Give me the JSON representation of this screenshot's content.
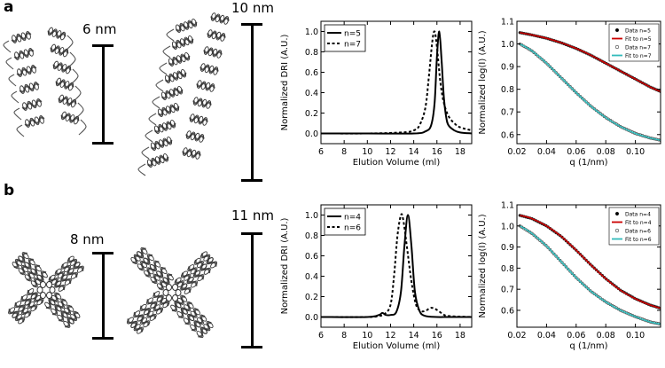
{
  "figure": {
    "panels": [
      {
        "label": "a",
        "scale_labels": [
          "6 nm",
          "10 nm"
        ],
        "structures": [
          "protein-ribbon-n5",
          "protein-ribbon-n7"
        ]
      },
      {
        "label": "b",
        "scale_labels": [
          "8 nm",
          "11 nm"
        ],
        "structures": [
          "protein-ribbon-n4",
          "protein-ribbon-n6"
        ]
      }
    ]
  },
  "chart_data": [
    {
      "type": "line",
      "id": "sec-a",
      "xlabel": "Elution Volume (ml)",
      "ylabel": "Normalized DRI (A.U.)",
      "xlim": [
        6,
        19
      ],
      "ylim": [
        -0.1,
        1.1
      ],
      "xticks": [
        6,
        8,
        10,
        12,
        14,
        16,
        18
      ],
      "yticks": [
        0.0,
        0.2,
        0.4,
        0.6,
        0.8,
        1.0
      ],
      "legend_position": "top-left",
      "series": [
        {
          "name": "n=5",
          "style": "solid",
          "peak": 16.2,
          "width_left": 0.32,
          "width_right": 0.38,
          "x": [
            6,
            10,
            14,
            15,
            15.5,
            15.8,
            16.0,
            16.2,
            16.4,
            16.6,
            16.8,
            17.0,
            17.5,
            18,
            19
          ],
          "y": [
            0,
            0,
            0.0,
            0.02,
            0.08,
            0.3,
            0.75,
            1.0,
            0.72,
            0.35,
            0.16,
            0.08,
            0.03,
            0.01,
            0
          ]
        },
        {
          "name": "n=7",
          "style": "dotted",
          "x": [
            6,
            10,
            13,
            14,
            14.5,
            15.0,
            15.3,
            15.6,
            15.8,
            16.0,
            16.3,
            16.6,
            17,
            17.5,
            18,
            19
          ],
          "y": [
            0,
            0,
            0.01,
            0.03,
            0.08,
            0.25,
            0.55,
            0.9,
            1.0,
            0.85,
            0.5,
            0.3,
            0.17,
            0.1,
            0.06,
            0.03
          ]
        }
      ]
    },
    {
      "type": "line",
      "id": "saxs-a",
      "xlabel": "q (1/nm)",
      "ylabel": "Normalized log(I) (A.U.)",
      "xlim": [
        0.02,
        0.117
      ],
      "ylim": [
        0.56,
        1.1
      ],
      "xticks": [
        0.02,
        0.04,
        0.06,
        0.08,
        0.1
      ],
      "yticks": [
        0.6,
        0.7,
        0.8,
        0.9,
        1.0,
        1.1
      ],
      "legend_position": "top-right",
      "series": [
        {
          "name": "Data n=5",
          "style": "markers-filled",
          "x": [
            0.022,
            0.03,
            0.04,
            0.05,
            0.06,
            0.07,
            0.08,
            0.09,
            0.1,
            0.11,
            0.117
          ],
          "y": [
            1.05,
            1.04,
            1.025,
            1.005,
            0.98,
            0.95,
            0.915,
            0.88,
            0.845,
            0.81,
            0.79
          ]
        },
        {
          "name": "Fit to n=5",
          "style": "line-red",
          "x": [
            0.022,
            0.03,
            0.04,
            0.05,
            0.06,
            0.07,
            0.08,
            0.09,
            0.1,
            0.11,
            0.117
          ],
          "y": [
            1.05,
            1.04,
            1.025,
            1.005,
            0.98,
            0.95,
            0.915,
            0.88,
            0.845,
            0.81,
            0.79
          ]
        },
        {
          "name": "Data n=7",
          "style": "markers-open",
          "x": [
            0.022,
            0.03,
            0.04,
            0.05,
            0.06,
            0.07,
            0.08,
            0.09,
            0.1,
            0.11,
            0.117
          ],
          "y": [
            1.0,
            0.97,
            0.915,
            0.85,
            0.785,
            0.725,
            0.675,
            0.635,
            0.605,
            0.585,
            0.575
          ]
        },
        {
          "name": "Fit to n=7",
          "style": "line-cyan",
          "x": [
            0.022,
            0.03,
            0.04,
            0.05,
            0.06,
            0.07,
            0.08,
            0.09,
            0.1,
            0.11,
            0.117
          ],
          "y": [
            1.0,
            0.97,
            0.915,
            0.85,
            0.785,
            0.725,
            0.675,
            0.635,
            0.605,
            0.585,
            0.575
          ]
        }
      ]
    },
    {
      "type": "line",
      "id": "sec-b",
      "xlabel": "Elution Volume (ml)",
      "ylabel": "Normalized DRI (A.U.)",
      "xlim": [
        6,
        19
      ],
      "ylim": [
        -0.1,
        1.1
      ],
      "xticks": [
        6,
        8,
        10,
        12,
        14,
        16,
        18
      ],
      "yticks": [
        0.0,
        0.2,
        0.4,
        0.6,
        0.8,
        1.0
      ],
      "legend_position": "top-left",
      "series": [
        {
          "name": "n=4",
          "style": "solid",
          "x": [
            6,
            10,
            11,
            11.3,
            11.6,
            12,
            12.5,
            12.9,
            13.2,
            13.5,
            13.8,
            14.1,
            14.5,
            15,
            16,
            17,
            19
          ],
          "y": [
            0,
            0,
            0.02,
            0.04,
            0.02,
            0.02,
            0.05,
            0.25,
            0.7,
            1.0,
            0.7,
            0.25,
            0.06,
            0.01,
            0,
            0,
            0
          ]
        },
        {
          "name": "n=6",
          "style": "dotted",
          "x": [
            6,
            10,
            11,
            11.5,
            12,
            12.3,
            12.6,
            12.9,
            13.1,
            13.4,
            13.8,
            14.2,
            14.6,
            15,
            15.5,
            16,
            16.5,
            17,
            19
          ],
          "y": [
            0,
            0,
            0.01,
            0.03,
            0.12,
            0.4,
            0.8,
            1.0,
            0.95,
            0.7,
            0.35,
            0.12,
            0.06,
            0.06,
            0.09,
            0.07,
            0.03,
            0.01,
            0
          ]
        }
      ]
    },
    {
      "type": "line",
      "id": "saxs-b",
      "xlabel": "q (1/nm)",
      "ylabel": "Normalized log(I) (A.U.)",
      "xlim": [
        0.02,
        0.117
      ],
      "ylim": [
        0.52,
        1.1
      ],
      "xticks": [
        0.02,
        0.04,
        0.06,
        0.08,
        0.1
      ],
      "yticks": [
        0.6,
        0.7,
        0.8,
        0.9,
        1.0,
        1.1
      ],
      "legend_position": "top-right",
      "series": [
        {
          "name": "Data n=4",
          "style": "markers-filled",
          "x": [
            0.022,
            0.03,
            0.04,
            0.05,
            0.06,
            0.07,
            0.08,
            0.09,
            0.1,
            0.11,
            0.117
          ],
          "y": [
            1.05,
            1.035,
            1.0,
            0.95,
            0.885,
            0.815,
            0.75,
            0.695,
            0.655,
            0.625,
            0.61
          ]
        },
        {
          "name": "Fit to n=4",
          "style": "line-red",
          "x": [
            0.022,
            0.03,
            0.04,
            0.05,
            0.06,
            0.07,
            0.08,
            0.09,
            0.1,
            0.11,
            0.117
          ],
          "y": [
            1.05,
            1.035,
            1.0,
            0.95,
            0.885,
            0.815,
            0.75,
            0.695,
            0.655,
            0.625,
            0.61
          ]
        },
        {
          "name": "Data n=6",
          "style": "markers-open",
          "x": [
            0.022,
            0.03,
            0.04,
            0.05,
            0.06,
            0.07,
            0.08,
            0.09,
            0.1,
            0.11,
            0.117
          ],
          "y": [
            1.0,
            0.965,
            0.905,
            0.83,
            0.755,
            0.69,
            0.64,
            0.6,
            0.57,
            0.545,
            0.535
          ]
        },
        {
          "name": "Fit to n=6",
          "style": "line-cyan",
          "x": [
            0.022,
            0.03,
            0.04,
            0.05,
            0.06,
            0.07,
            0.08,
            0.09,
            0.1,
            0.11,
            0.117
          ],
          "y": [
            1.0,
            0.965,
            0.905,
            0.83,
            0.755,
            0.69,
            0.64,
            0.6,
            0.57,
            0.545,
            0.535
          ]
        }
      ]
    }
  ],
  "colors": {
    "fit_red": "#cc0000",
    "fit_cyan": "#33bbbb",
    "ribbon": "#555555",
    "data_marker": "#000000"
  }
}
